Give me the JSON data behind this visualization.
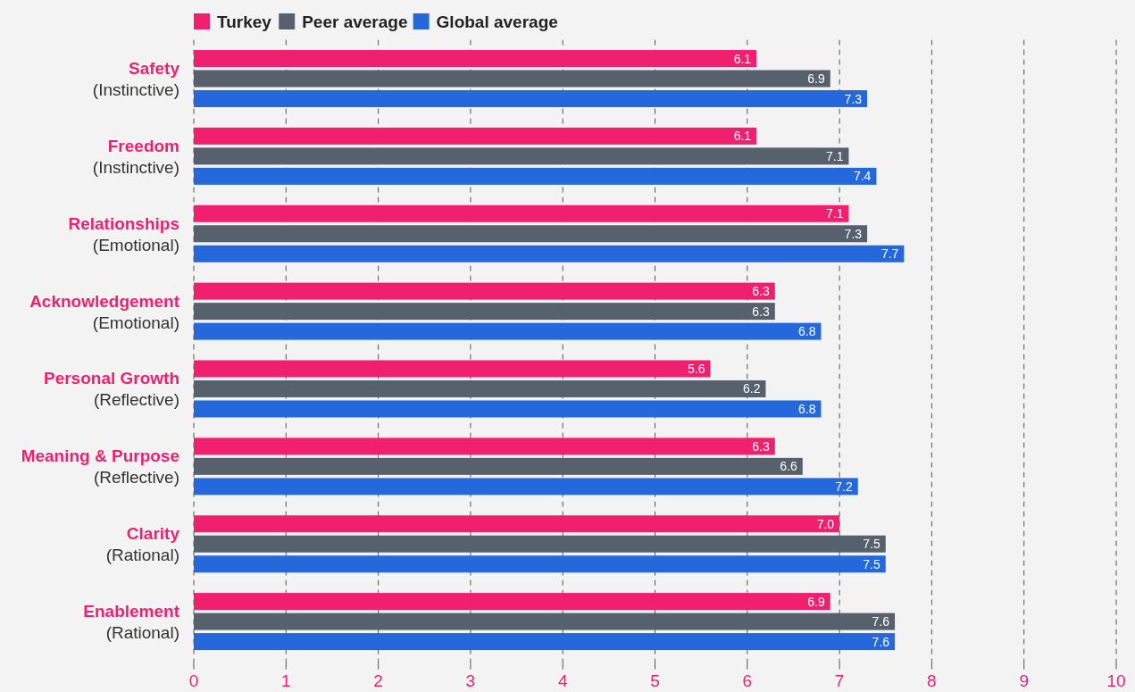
{
  "chart_data": {
    "type": "bar",
    "orientation": "horizontal",
    "categories": [
      "Safety\n(Instinctive)",
      "Freedom\n(Instinctive)",
      "Relationships\n(Emotional)",
      "Acknowledgement\n(Emotional)",
      "Personal Growth\n(Reflective)",
      "Meaning & Purpose\n(Reflective)",
      "Clarity\n(Rational)",
      "Enablement\n(Rational)"
    ],
    "series": [
      {
        "name": "Turkey",
        "color": "#f0206e",
        "values": [
          6.1,
          6.1,
          7.1,
          6.3,
          5.6,
          6.3,
          7.0,
          6.9
        ],
        "value_labels": [
          "6.1",
          "6.1",
          "7.1",
          "6.3",
          "5.6",
          "6.3",
          "7.0",
          "6.9"
        ]
      },
      {
        "name": "Peer average",
        "color": "#56616d",
        "values": [
          6.9,
          7.1,
          7.3,
          6.3,
          6.2,
          6.6,
          7.5,
          7.6
        ],
        "value_labels": [
          "6.9",
          "7.1",
          "7.3",
          "6.3",
          "6.2",
          "6.6",
          "7.5",
          "7.6"
        ]
      },
      {
        "name": "Global average",
        "color": "#2468dc",
        "values": [
          7.3,
          7.4,
          7.7,
          6.8,
          6.8,
          7.2,
          7.5,
          7.6
        ],
        "value_labels": [
          "7.3",
          "7.4",
          "7.7",
          "6.8",
          "6.8",
          "7.2",
          "7.5",
          "7.6"
        ]
      }
    ],
    "xlim": [
      0,
      10
    ],
    "xticks": [
      0,
      1,
      2,
      3,
      4,
      5,
      6,
      7,
      8,
      9,
      10
    ],
    "grid": "x",
    "legend": "top left"
  }
}
